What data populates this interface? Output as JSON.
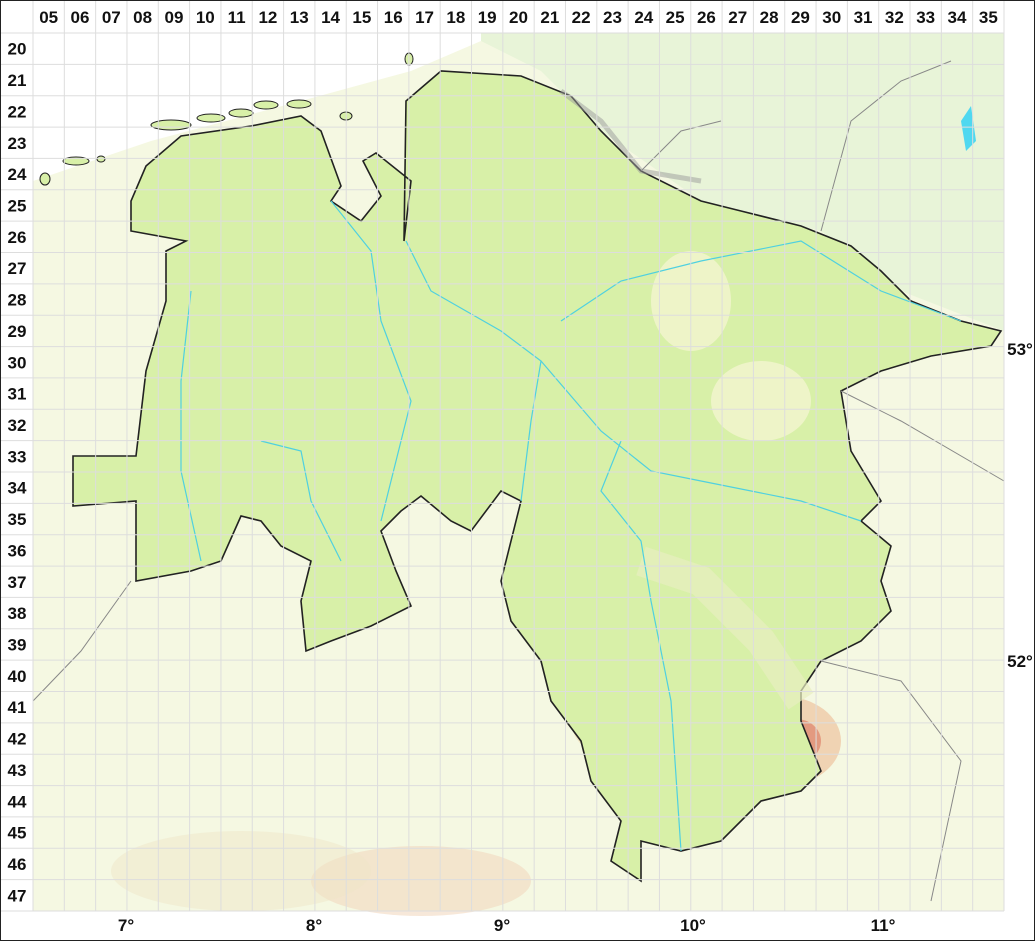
{
  "map": {
    "column_labels": [
      "05",
      "06",
      "07",
      "08",
      "09",
      "10",
      "11",
      "12",
      "13",
      "14",
      "15",
      "16",
      "17",
      "18",
      "19",
      "20",
      "21",
      "22",
      "23",
      "24",
      "25",
      "26",
      "27",
      "28",
      "29",
      "30",
      "31",
      "32",
      "33",
      "34",
      "35"
    ],
    "row_labels": [
      "20",
      "21",
      "22",
      "23",
      "24",
      "25",
      "26",
      "27",
      "28",
      "29",
      "30",
      "31",
      "32",
      "33",
      "34",
      "35",
      "36",
      "37",
      "38",
      "39",
      "40",
      "41",
      "42",
      "43",
      "44",
      "45",
      "46",
      "47"
    ],
    "longitude_labels": [
      "7°",
      "8°",
      "9°",
      "10°",
      "11°"
    ],
    "latitude_labels": [
      "53°",
      "52°"
    ],
    "colors": {
      "region_fill": "#d8f0a8",
      "region_border": "#222222",
      "background_south": "#f5f8e2",
      "background_north": "#e8f4d8",
      "rivers": "#4fd0e0",
      "grid": "#dddddd",
      "highlands": "#e8a888"
    }
  }
}
